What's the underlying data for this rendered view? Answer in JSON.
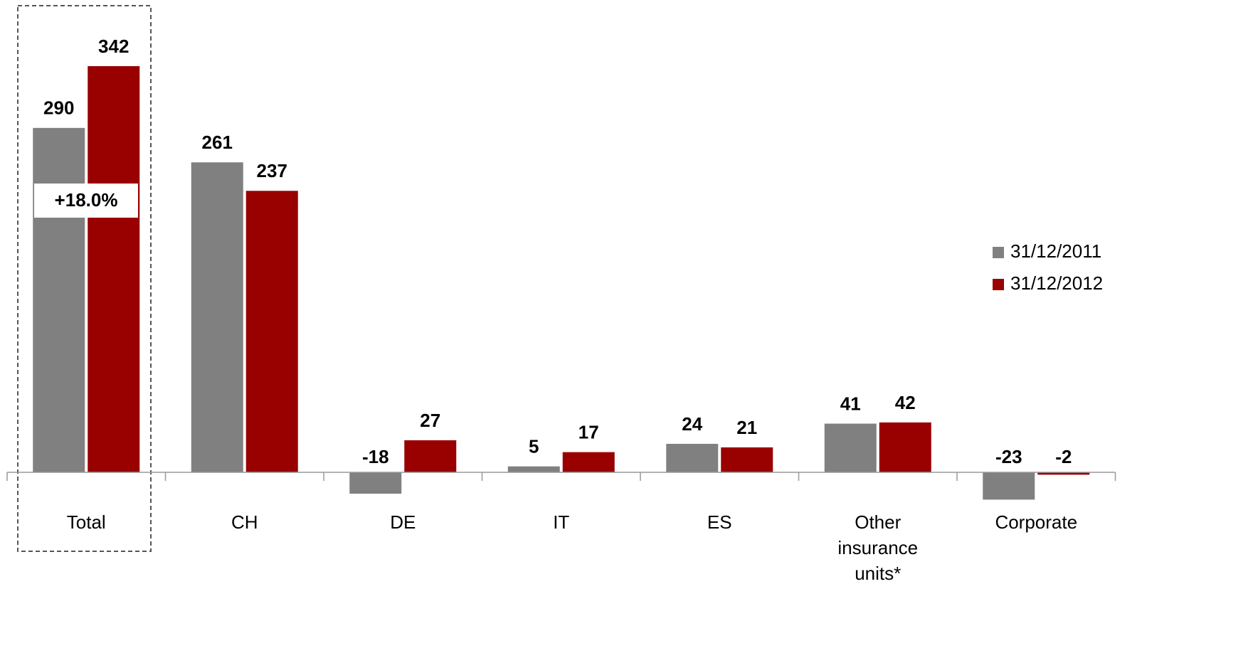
{
  "chart_data": {
    "type": "bar",
    "categories": [
      "Total",
      "CH",
      "DE",
      "IT",
      "ES",
      "Other insurance units*",
      "Corporate"
    ],
    "series": [
      {
        "name": "31/12/2011",
        "color": "#808080",
        "values": [
          290,
          261,
          -18,
          5,
          24,
          41,
          -23
        ]
      },
      {
        "name": "31/12/2012",
        "color": "#990000",
        "values": [
          342,
          237,
          27,
          17,
          21,
          42,
          -2
        ]
      }
    ],
    "annotations": [
      "+18.0%"
    ],
    "legend": "right"
  }
}
